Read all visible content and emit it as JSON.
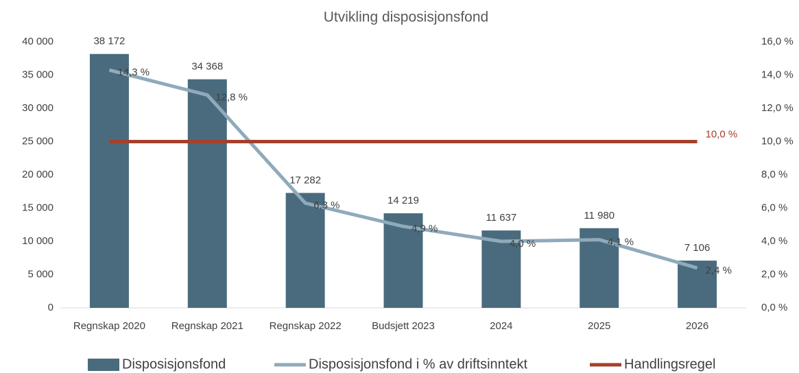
{
  "chart_data": {
    "type": "bar",
    "title": "Utvikling disposisjonsfond",
    "categories": [
      "Regnskap 2020",
      "Regnskap 2021",
      "Regnskap 2022",
      "Budsjett 2023",
      "2024",
      "2025",
      "2026"
    ],
    "series": [
      {
        "name": "Disposisjonsfond",
        "type": "bar",
        "color": "#4a6b7d",
        "values": [
          38172,
          34368,
          17282,
          14219,
          11637,
          11980,
          7106
        ],
        "value_labels": [
          "38 172",
          "34 368",
          "17 282",
          "14 219",
          "11 637",
          "11 980",
          "7 106"
        ]
      },
      {
        "name": "Disposisjonsfond i % av driftsinntekt",
        "type": "line",
        "axis": "y2",
        "color": "#8faabb",
        "values": [
          14.3,
          12.8,
          6.3,
          4.9,
          4.0,
          4.1,
          2.4
        ],
        "value_labels": [
          "14,3 %",
          "12,8 %",
          "6,3 %",
          "4,9 %",
          "4,0 %",
          "4,1 %",
          "2,4 %"
        ]
      },
      {
        "name": "Handlingsregel",
        "type": "line",
        "axis": "y2",
        "color": "#a3412b",
        "values": [
          10,
          10,
          10,
          10,
          10,
          10,
          10
        ],
        "value_labels": [
          null,
          null,
          null,
          null,
          null,
          null,
          "10,0 %"
        ]
      }
    ],
    "ylim": [
      0,
      40000
    ],
    "yticks": [
      0,
      {
        "value": 5000,
        "label": "5 000"
      },
      {
        "value": 10000,
        "label": "10 000"
      },
      {
        "value": 15000,
        "label": "15 000"
      },
      {
        "value": 20000,
        "label": "20 000"
      },
      {
        "value": 25000,
        "label": "25 000"
      },
      {
        "value": 30000,
        "label": "30 000"
      },
      {
        "value": 35000,
        "label": "35 000"
      },
      {
        "value": 40000,
        "label": "40 000"
      }
    ],
    "y2lim": [
      0,
      16
    ],
    "y2ticks": [
      {
        "value": 0,
        "label": "0,0 %"
      },
      {
        "value": 2,
        "label": "2,0 %"
      },
      {
        "value": 4,
        "label": "4,0 %"
      },
      {
        "value": 6,
        "label": "6,0 %"
      },
      {
        "value": 8,
        "label": "8,0 %"
      },
      {
        "value": 10,
        "label": "10,0 %"
      },
      {
        "value": 12,
        "label": "12,0 %"
      },
      {
        "value": 14,
        "label": "14,0 %"
      },
      {
        "value": 16,
        "label": "16,0 %"
      }
    ],
    "legend": "bottom"
  }
}
